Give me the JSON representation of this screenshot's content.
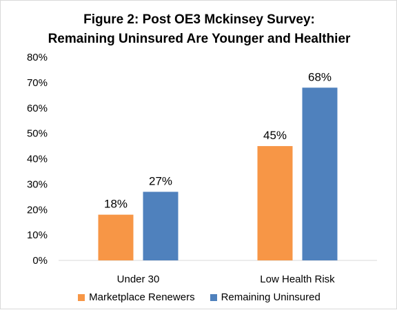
{
  "chart_data": {
    "type": "bar",
    "title_line1": "Figure 2: Post OE3 Mckinsey Survey:",
    "title_line2": "Remaining Uninsured Are Younger and Healthier",
    "categories": [
      "Under 30",
      "Low Health Risk"
    ],
    "series": [
      {
        "name": "Marketplace Renewers",
        "values": [
          18,
          45
        ],
        "labels": [
          "18%",
          "45%"
        ],
        "color": "#f79646"
      },
      {
        "name": "Remaining Uninsured",
        "values": [
          27,
          68
        ],
        "labels": [
          "27%",
          "68%"
        ],
        "color": "#4f81bd"
      }
    ],
    "ylim": [
      0,
      80
    ],
    "yticks": [
      0,
      10,
      20,
      30,
      40,
      50,
      60,
      70,
      80
    ],
    "ytick_labels": [
      "0%",
      "10%",
      "20%",
      "30%",
      "40%",
      "50%",
      "60%",
      "70%",
      "80%"
    ],
    "grid": false,
    "legend_position": "bottom"
  }
}
